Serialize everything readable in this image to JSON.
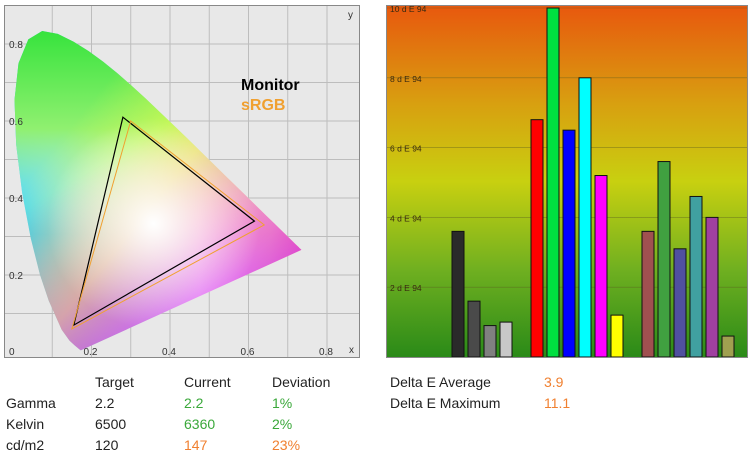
{
  "chart_data": [
    {
      "type": "scatter",
      "x_axis_label": "x",
      "y_axis_label": "y",
      "xlim": [
        0,
        0.85
      ],
      "ylim": [
        0,
        0.9
      ],
      "x_tick_labels": [
        "0",
        "0.2",
        "0.4",
        "0.6",
        "0.8"
      ],
      "y_tick_labels": [
        "0.2",
        "0.4",
        "0.6",
        "0.8"
      ],
      "grid": true,
      "legend": [
        "Monitor",
        "sRGB"
      ],
      "colors": {
        "Monitor": "#000000",
        "sRGB": "#f0a030"
      },
      "series": [
        {
          "name": "Monitor",
          "points": [
            [
              0.28,
              0.61
            ],
            [
              0.615,
              0.34
            ],
            [
              0.155,
              0.07
            ]
          ]
        },
        {
          "name": "sRGB",
          "points": [
            [
              0.3,
              0.6
            ],
            [
              0.64,
              0.33
            ],
            [
              0.15,
              0.06
            ]
          ]
        }
      ]
    },
    {
      "type": "bar",
      "tick_labels": [
        "2 d E 94",
        "4 d E 94",
        "6 d E 94",
        "8 d E 94",
        "10 d E 94"
      ],
      "ylim": [
        0,
        10
      ],
      "values": [
        3.6,
        1.6,
        0.9,
        1.0,
        6.8,
        10.0,
        6.5,
        8.0,
        5.2,
        1.2,
        3.6,
        5.6,
        3.1,
        4.6,
        4.0,
        0.6
      ],
      "colors": [
        "#2a2a2a",
        "#4a4a4a",
        "#808080",
        "#c8c8c8",
        "#ff0000",
        "#00e040",
        "#0000ff",
        "#00ffff",
        "#ff00ff",
        "#ffff00",
        "#a05050",
        "#40a040",
        "#5050a0",
        "#40a0a0",
        "#a040a0",
        "#a0a050"
      ],
      "groups": [
        [
          0,
          1,
          2,
          3
        ],
        [
          4,
          5,
          6,
          7,
          8,
          9
        ],
        [
          10,
          11,
          12,
          13,
          14,
          15
        ]
      ]
    }
  ],
  "settings_table": {
    "headers": [
      "",
      "Target",
      "Current",
      "Deviation"
    ],
    "rows": [
      {
        "label": "Gamma",
        "target": "2.2",
        "current": "2.2",
        "deviation": "1%",
        "current_color": "#3aa83a",
        "deviation_color": "#3aa83a"
      },
      {
        "label": "Kelvin",
        "target": "6500",
        "current": "6360",
        "deviation": "2%",
        "current_color": "#3aa83a",
        "deviation_color": "#3aa83a"
      },
      {
        "label": "cd/m2",
        "target": "120",
        "current": "147",
        "deviation": "23%",
        "current_color": "#f08030",
        "deviation_color": "#f08030"
      }
    ]
  },
  "delta_e": {
    "average_label": "Delta E Average",
    "average_value": "3.9",
    "maximum_label": "Delta E Maximum",
    "maximum_value": "11.1",
    "value_color": "#f08030"
  }
}
